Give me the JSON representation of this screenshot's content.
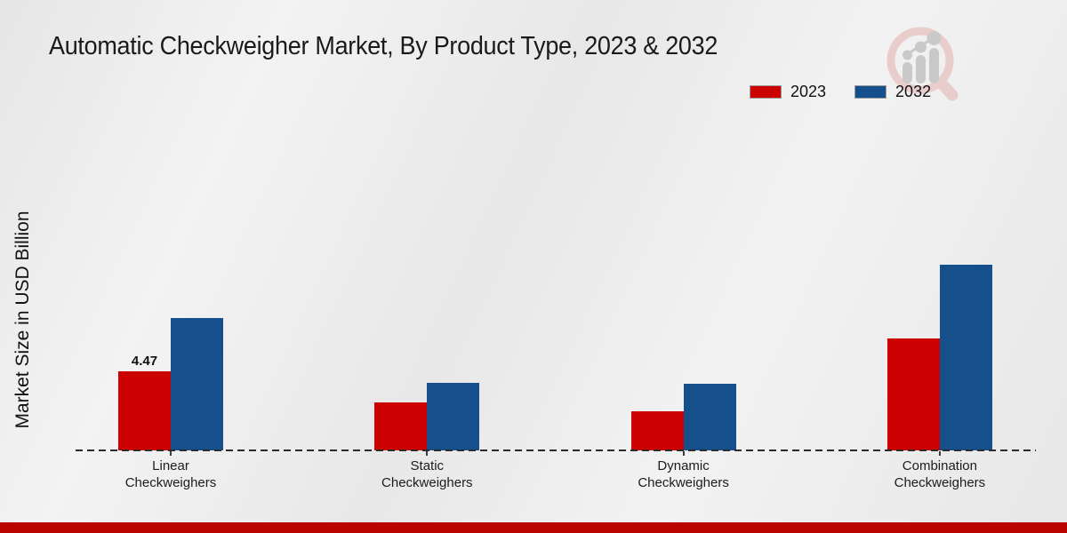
{
  "page": {
    "title": "Automatic Checkweigher Market, By Product Type, 2023 & 2032",
    "y_axis_label": "Market Size in USD Billion"
  },
  "legend": {
    "items": [
      {
        "label": "2023",
        "color": "#cc0202"
      },
      {
        "label": "2032",
        "color": "#15508d"
      }
    ]
  },
  "colors": {
    "series_2023": "#cc0202",
    "series_2032": "#15508d",
    "footer_band": "#b90400",
    "axis": "#2b2b2b",
    "watermark_ring": "#e9cdca",
    "watermark_gray": "#c9c9c9"
  },
  "watermark": {
    "icon": "magnifier-bar-chart-logo-icon"
  },
  "chart_data": {
    "type": "bar",
    "title": "Automatic Checkweigher Market, By Product Type, 2023 & 2032",
    "xlabel": "",
    "ylabel": "Market Size in USD Billion",
    "categories": [
      "Linear Checkweighers",
      "Static Checkweighers",
      "Dynamic Checkweighers",
      "Combination Checkweighers"
    ],
    "categories_lines": [
      [
        "Linear",
        "Checkweighers"
      ],
      [
        "Static",
        "Checkweighers"
      ],
      [
        "Dynamic",
        "Checkweighers"
      ],
      [
        "Combination",
        "Checkweighers"
      ]
    ],
    "series": [
      {
        "name": "2023",
        "color": "#cc0202",
        "values": [
          4.47,
          2.7,
          2.2,
          6.35
        ]
      },
      {
        "name": "2032",
        "color": "#15508d",
        "values": [
          7.5,
          3.8,
          3.75,
          10.5
        ]
      }
    ],
    "data_labels": [
      {
        "series_index": 0,
        "category_index": 0,
        "text": "4.47"
      }
    ],
    "ylim": [
      0,
      11
    ],
    "grid": false,
    "y_axis_ticks_visible": false,
    "legend_position": "top-right",
    "baseline_style": "dashed"
  }
}
